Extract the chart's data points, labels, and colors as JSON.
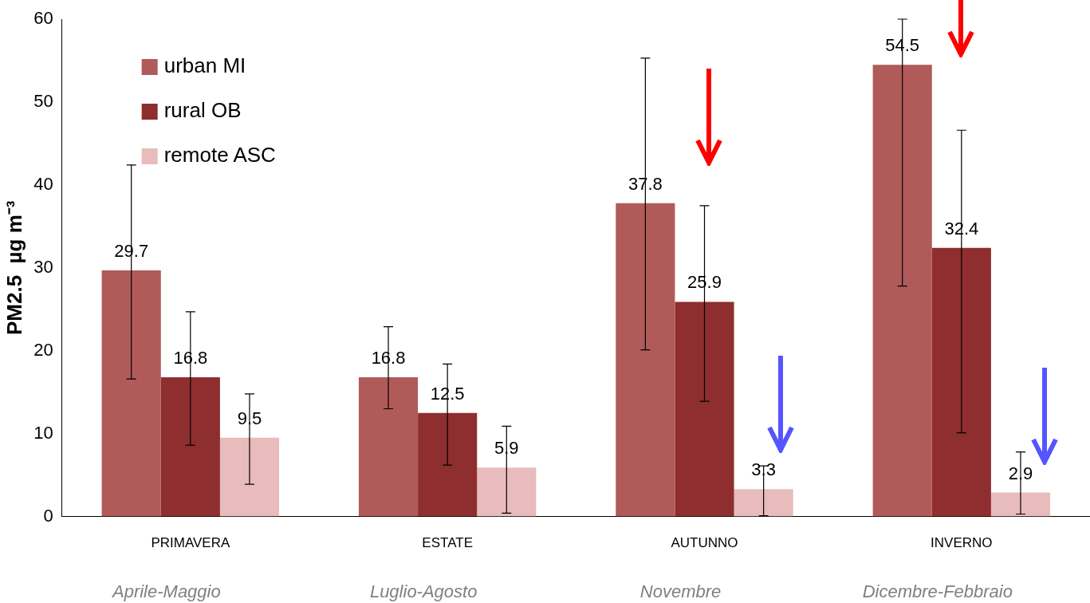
{
  "chart_data": {
    "type": "bar",
    "ylabel": "PM2.5  µg m⁻³",
    "categories": [
      "PRIMAVERA",
      "ESTATE",
      "AUTUNNO",
      "INVERNO"
    ],
    "series": [
      {
        "name": "urban MI",
        "color": "#b05a5a",
        "values": [
          29.7,
          16.8,
          37.8,
          54.5
        ],
        "errors": [
          [
            16.6,
            42.4
          ],
          [
            13.0,
            22.9
          ],
          [
            20.1,
            55.3
          ],
          [
            27.8,
            60
          ]
        ]
      },
      {
        "name": "rural OB",
        "color": "#8e2e2e",
        "values": [
          16.8,
          12.5,
          25.9,
          32.4
        ],
        "errors": [
          [
            8.6,
            24.7
          ],
          [
            6.2,
            18.4
          ],
          [
            13.9,
            37.5
          ],
          [
            10.1,
            46.6
          ]
        ]
      },
      {
        "name": "remote ASC",
        "color": "#e8bcbc",
        "values": [
          9.5,
          5.9,
          3.3,
          2.9
        ],
        "errors": [
          [
            3.9,
            14.8
          ],
          [
            0.4,
            10.9
          ],
          [
            0.1,
            6.1
          ],
          [
            0.3,
            7.8
          ]
        ]
      }
    ],
    "ylim": [
      0,
      60
    ],
    "yticks": [
      0,
      10,
      20,
      30,
      40,
      50,
      60
    ],
    "grid": false,
    "legend": "top left",
    "data_labels": true,
    "annotations": [
      "Aprile-Maggio",
      "Luglio-Agosto",
      "Novembre",
      "Dicembre-Febbraio"
    ]
  }
}
